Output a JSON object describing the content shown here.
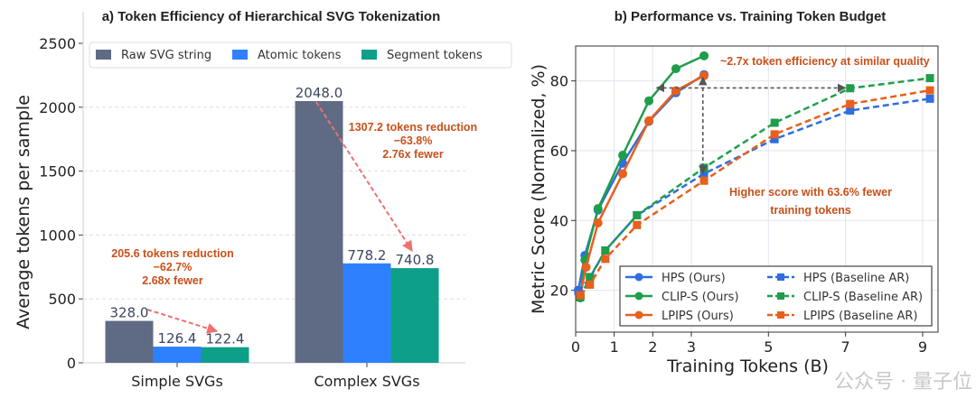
{
  "chart_data": [
    {
      "type": "bar",
      "title": "a) Token Efficiency of Hierarchical SVG Tokenization",
      "xlabel": "",
      "ylabel": "Average tokens per sample",
      "ylim": [
        0,
        2500
      ],
      "yticks": [
        0,
        500,
        1000,
        1500,
        2000,
        2500
      ],
      "grid": "horizontal dashed",
      "legend_placement": "top",
      "categories": [
        "Simple SVGs",
        "Complex SVGs"
      ],
      "series": [
        {
          "name": "Raw SVG string",
          "color": "#5f6b85",
          "values": [
            328.0,
            2048.0
          ],
          "labels": [
            "328.0",
            "2048.0"
          ]
        },
        {
          "name": "Atomic tokens",
          "color": "#2f80ff",
          "values": [
            126.4,
            778.2
          ],
          "labels": [
            "126.4",
            "778.2"
          ]
        },
        {
          "name": "Segment tokens",
          "color": "#0e9f88",
          "values": [
            122.4,
            740.8
          ],
          "labels": [
            "122.4",
            "740.8"
          ]
        }
      ],
      "annotations": [
        {
          "category": "Simple SVGs",
          "lines": [
            "205.6 tokens reduction",
            "−62.7%",
            "2.68x fewer"
          ]
        },
        {
          "category": "Complex SVGs",
          "lines": [
            "1307.2 tokens reduction",
            "−63.8%",
            "2.76x fewer"
          ]
        }
      ],
      "annotation_color": "#c8501a"
    },
    {
      "type": "line",
      "title": "b) Performance vs. Training Token Budget",
      "xlabel": "Training Tokens (B)",
      "ylabel": "Metric Score (Normalized, %)",
      "xlim": [
        0,
        9.4
      ],
      "ylim": [
        8,
        90
      ],
      "xticks": [
        0,
        1,
        2,
        3,
        5,
        7,
        9
      ],
      "yticks": [
        20,
        40,
        60,
        80
      ],
      "grid": true,
      "legend_placement": "lower-right",
      "series": [
        {
          "name": "HPS (Ours)",
          "color": "#2f6de1",
          "style": "solid",
          "marker": "circle",
          "x": [
            0.07,
            0.24,
            0.58,
            1.22,
            1.9,
            2.6,
            3.33
          ],
          "y": [
            20,
            30,
            43,
            56.4,
            68.4,
            76.6,
            81.8
          ]
        },
        {
          "name": "CLIP-S (Ours)",
          "color": "#1e9e4a",
          "style": "solid",
          "marker": "circle",
          "x": [
            0.12,
            0.24,
            0.58,
            1.22,
            1.9,
            2.6,
            3.33
          ],
          "y": [
            17.8,
            28.7,
            43.4,
            58.7,
            74.3,
            83.5,
            87.2
          ]
        },
        {
          "name": "LPIPS (Ours)",
          "color": "#e8601c",
          "style": "solid",
          "marker": "circle",
          "x": [
            0.12,
            0.27,
            0.58,
            1.22,
            1.9,
            2.6,
            3.33
          ],
          "y": [
            18.6,
            26.6,
            39.3,
            53.4,
            68.6,
            77.2,
            81.5
          ]
        },
        {
          "name": "HPS (Baseline AR)",
          "color": "#2f6de1",
          "style": "dashed",
          "marker": "square",
          "x": [
            0.07,
            0.37,
            0.77,
            1.59,
            3.33,
            5.16,
            7.12,
            9.19
          ],
          "y": [
            19.7,
            23.6,
            31.4,
            41.5,
            53.4,
            63.3,
            71.5,
            74.9
          ]
        },
        {
          "name": "CLIP-S (Baseline AR)",
          "color": "#1e9e4a",
          "style": "dashed",
          "marker": "square",
          "x": [
            0.12,
            0.37,
            0.77,
            1.59,
            3.33,
            5.16,
            7.12,
            9.19
          ],
          "y": [
            18,
            23.8,
            31.4,
            41.5,
            55.1,
            68,
            77.9,
            80.8
          ]
        },
        {
          "name": "LPIPS (Baseline AR)",
          "color": "#e8601c",
          "style": "dashed",
          "marker": "square",
          "x": [
            0.12,
            0.37,
            0.77,
            1.59,
            3.33,
            5.16,
            7.12,
            9.19
          ],
          "y": [
            18.6,
            21.6,
            29,
            38.7,
            51.4,
            64.7,
            73.4,
            77.3
          ]
        }
      ],
      "annotations": [
        {
          "text": "~2.7x token efficiency at similar quality"
        },
        {
          "lines": [
            "Higher score with 63.6% fewer",
            "training tokens"
          ]
        }
      ],
      "annotation_color": "#c8501a"
    }
  ],
  "watermark": "公众号 · 量子位"
}
